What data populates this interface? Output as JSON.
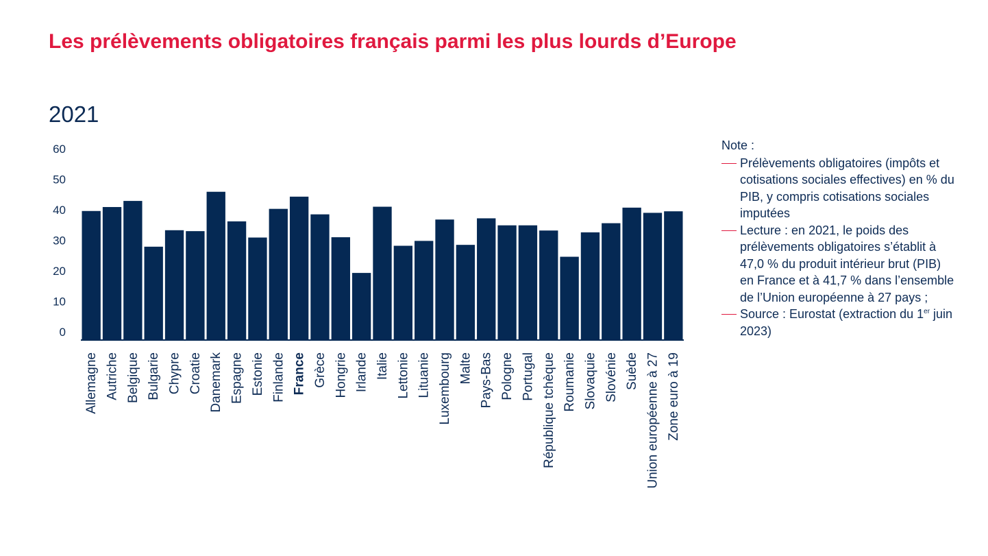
{
  "title": "Les prélèvements obligatoires français parmi les plus lourds d’Europe",
  "subtitle": "2021",
  "colors": {
    "title": "#e0193f",
    "bars": "#052954",
    "text": "#0d2b55",
    "accent": "#e0193f"
  },
  "notes": {
    "heading": "Note :",
    "items": [
      "Prélèvements obligatoires (impôts et cotisations sociales effectives) en % du PIB, y compris cotisations sociales imputées",
      "Lecture : en 2021, le poids des prélèvements obligatoires s’établit à 47,0 % du produit intérieur brut (PIB) en France et à 41,7 % dans l’ensemble de l’Union européenne à 27 pays ;"
    ],
    "source": {
      "text": "Source : Eurostat (extraction du 1",
      "superscript": "er",
      "suffix": " juin 2023)"
    }
  },
  "chart_data": {
    "type": "bar",
    "title": "",
    "xlabel": "",
    "ylabel": "",
    "ylim": [
      0,
      60
    ],
    "yticks": [
      0,
      10,
      20,
      30,
      40,
      50,
      60
    ],
    "grid": false,
    "highlight_category": "France",
    "categories": [
      "Allemagne",
      "Autriche",
      "Belgique",
      "Bulgarie",
      "Chypre",
      "Croatie",
      "Danemark",
      "Espagne",
      "Estonie",
      "Finlande",
      "France",
      "Grèce",
      "Hongrie",
      "Irlande",
      "Italie",
      "Lettonie",
      "Lituanie",
      "Luxembourg",
      "Malte",
      "Pays-Bas",
      "Pologne",
      "Portugal",
      "République tchèque",
      "Roumanie",
      "Slovaquie",
      "Slovénie",
      "Suède",
      "Union européenne à 27",
      "Zone euro à 19"
    ],
    "values": [
      42.3,
      43.6,
      45.6,
      30.6,
      36.0,
      35.7,
      48.6,
      38.9,
      33.6,
      43.0,
      47.0,
      41.2,
      33.7,
      22.0,
      43.7,
      30.9,
      32.5,
      39.5,
      31.2,
      39.9,
      37.6,
      37.6,
      35.9,
      27.3,
      35.3,
      38.3,
      43.4,
      41.7,
      42.2
    ]
  }
}
